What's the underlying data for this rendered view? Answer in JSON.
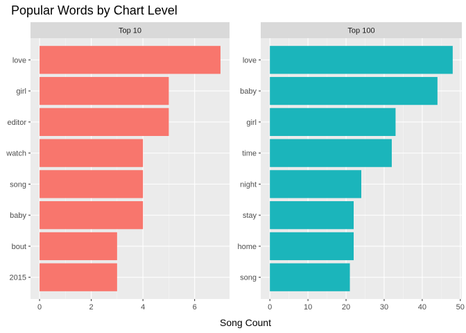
{
  "title": "Popular Words by Chart Level",
  "chart_data": {
    "type": "bar",
    "orientation": "horizontal",
    "title": "Popular Words by Chart Level",
    "xlabel": "Song Count",
    "ylabel": "",
    "grid": true,
    "panels": [
      {
        "name": "Top 10",
        "color": "#F8766D",
        "categories": [
          "love",
          "girl",
          "editor",
          "watch",
          "song",
          "baby",
          "bout",
          "2015"
        ],
        "values": [
          7,
          5,
          5,
          4,
          4,
          4,
          3,
          3
        ],
        "xlim": [
          -0.35,
          7.35
        ],
        "xticks": [
          0,
          2,
          4,
          6
        ]
      },
      {
        "name": "Top 100",
        "color": "#1BB5BB",
        "categories": [
          "love",
          "baby",
          "girl",
          "time",
          "night",
          "stay",
          "home",
          "song"
        ],
        "values": [
          48,
          44,
          33,
          32,
          24,
          22,
          22,
          21
        ],
        "xlim": [
          -2.4,
          50.4
        ],
        "xticks": [
          0,
          10,
          20,
          30,
          40,
          50
        ]
      }
    ]
  },
  "colors": {
    "panel_background": "#EBEBEB",
    "strip_background": "#D9D9D9",
    "grid_major": "#FFFFFF"
  }
}
